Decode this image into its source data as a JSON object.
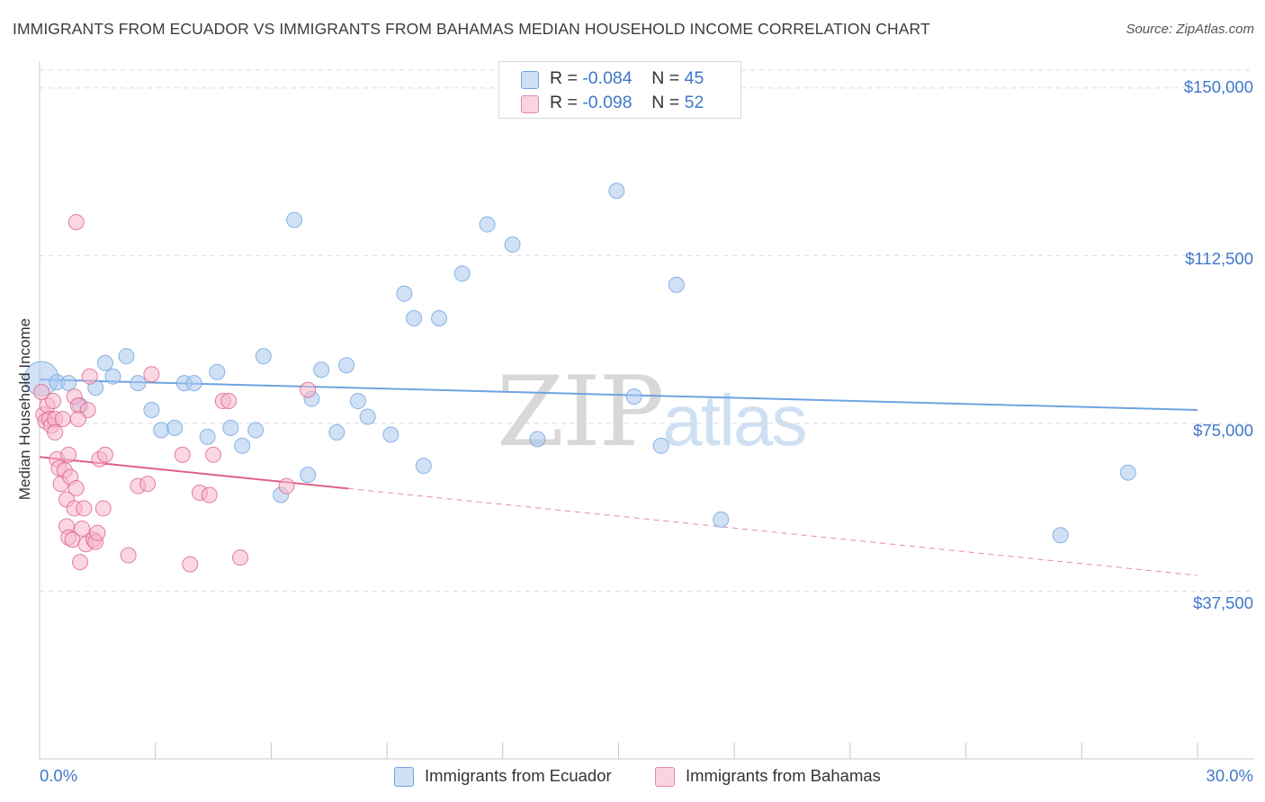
{
  "header": {
    "title": "IMMIGRANTS FROM ECUADOR VS IMMIGRANTS FROM BAHAMAS MEDIAN HOUSEHOLD INCOME CORRELATION CHART",
    "source": "Source: ZipAtlas.com"
  },
  "watermark": {
    "part1": "ZIP",
    "part2": "atlas"
  },
  "legend": {
    "rows": [
      {
        "r_label": "R = ",
        "r_value": "-0.084",
        "n_label": "N = ",
        "n_value": "45",
        "color": "#a9c8ef"
      },
      {
        "r_label": "R = ",
        "r_value": "-0.098",
        "n_label": "N = ",
        "n_value": "52",
        "color": "#f5b6cb"
      }
    ]
  },
  "axes": {
    "ylabel": "Median Household Income",
    "yticks": [
      "$150,000",
      "$112,500",
      "$75,000",
      "$37,500"
    ],
    "xtick_left": "0.0%",
    "xtick_right": "30.0%"
  },
  "bottom_legend": {
    "items": [
      {
        "label": "Immigrants from Ecuador",
        "color": "#a9c8ef"
      },
      {
        "label": "Immigrants from Bahamas",
        "color": "#f5b6cb"
      }
    ]
  },
  "chart_data": {
    "type": "scatter",
    "title": "IMMIGRANTS FROM ECUADOR VS IMMIGRANTS FROM BAHAMAS MEDIAN HOUSEHOLD INCOME CORRELATION CHART",
    "xlabel": "",
    "ylabel": "Median Household Income",
    "xlim": [
      0,
      30
    ],
    "ylim": [
      0,
      156000
    ],
    "yticks": [
      37500,
      75000,
      112500,
      150000
    ],
    "grid": true,
    "series": [
      {
        "name": "Immigrants from Ecuador",
        "color": "#6fa3e0",
        "fill": "#a9c8ef",
        "trend": {
          "x": [
            0,
            30
          ],
          "y": [
            84800,
            78000
          ],
          "dashed_from": null
        },
        "points": [
          [
            0.05,
            85000
          ],
          [
            0.45,
            84200
          ],
          [
            0.75,
            84000
          ],
          [
            1.05,
            79000
          ],
          [
            1.45,
            83000
          ],
          [
            1.9,
            85500
          ],
          [
            1.7,
            88500
          ],
          [
            2.25,
            90000
          ],
          [
            2.55,
            84000
          ],
          [
            2.9,
            78000
          ],
          [
            3.15,
            73500
          ],
          [
            3.5,
            74000
          ],
          [
            3.75,
            84000
          ],
          [
            4.0,
            84000
          ],
          [
            4.35,
            72000
          ],
          [
            4.6,
            86500
          ],
          [
            4.95,
            74000
          ],
          [
            5.25,
            70000
          ],
          [
            5.6,
            73500
          ],
          [
            5.8,
            90000
          ],
          [
            6.25,
            59000
          ],
          [
            6.6,
            120500
          ],
          [
            6.95,
            63500
          ],
          [
            7.05,
            80500
          ],
          [
            7.3,
            87000
          ],
          [
            7.7,
            73000
          ],
          [
            7.95,
            88000
          ],
          [
            8.25,
            80000
          ],
          [
            8.5,
            76500
          ],
          [
            9.1,
            72500
          ],
          [
            9.45,
            104000
          ],
          [
            9.7,
            98500
          ],
          [
            9.95,
            65500
          ],
          [
            10.35,
            98500
          ],
          [
            10.95,
            108500
          ],
          [
            11.6,
            119500
          ],
          [
            12.25,
            115000
          ],
          [
            12.9,
            71500
          ],
          [
            14.95,
            127000
          ],
          [
            15.4,
            81000
          ],
          [
            16.1,
            70000
          ],
          [
            16.5,
            106000
          ],
          [
            17.65,
            53500
          ],
          [
            26.45,
            50000
          ],
          [
            28.2,
            64000
          ]
        ]
      },
      {
        "name": "Immigrants from Bahamas",
        "color": "#e0608a",
        "fill": "#f5b6cb",
        "trend": {
          "x": [
            0,
            30
          ],
          "y": [
            67500,
            41000
          ],
          "dashed_from": 8.0
        },
        "points": [
          [
            0.05,
            82000
          ],
          [
            0.1,
            77000
          ],
          [
            0.15,
            75500
          ],
          [
            0.2,
            79000
          ],
          [
            0.25,
            76000
          ],
          [
            0.3,
            74500
          ],
          [
            0.35,
            80000
          ],
          [
            0.4,
            76000
          ],
          [
            0.4,
            73000
          ],
          [
            0.45,
            67000
          ],
          [
            0.5,
            65000
          ],
          [
            0.55,
            61500
          ],
          [
            0.6,
            76000
          ],
          [
            0.65,
            64500
          ],
          [
            0.7,
            58000
          ],
          [
            0.7,
            52000
          ],
          [
            0.75,
            49500
          ],
          [
            0.75,
            68000
          ],
          [
            0.8,
            63000
          ],
          [
            0.85,
            49000
          ],
          [
            0.9,
            81000
          ],
          [
            0.9,
            56000
          ],
          [
            0.95,
            60500
          ],
          [
            0.95,
            120000
          ],
          [
            1.0,
            79000
          ],
          [
            1.05,
            44000
          ],
          [
            1.1,
            51500
          ],
          [
            1.15,
            56000
          ],
          [
            1.2,
            48000
          ],
          [
            1.25,
            78000
          ],
          [
            1.3,
            85500
          ],
          [
            1.4,
            49000
          ],
          [
            1.45,
            48500
          ],
          [
            1.5,
            50500
          ],
          [
            1.55,
            67000
          ],
          [
            1.65,
            56000
          ],
          [
            1.7,
            68000
          ],
          [
            2.3,
            45500
          ],
          [
            2.55,
            61000
          ],
          [
            2.8,
            61500
          ],
          [
            2.9,
            86000
          ],
          [
            3.7,
            68000
          ],
          [
            3.9,
            43500
          ],
          [
            4.15,
            59500
          ],
          [
            4.4,
            59000
          ],
          [
            4.5,
            68000
          ],
          [
            4.75,
            80000
          ],
          [
            4.9,
            80000
          ],
          [
            5.2,
            45000
          ],
          [
            6.4,
            61000
          ],
          [
            6.95,
            82500
          ],
          [
            1.0,
            76000
          ]
        ]
      }
    ]
  }
}
